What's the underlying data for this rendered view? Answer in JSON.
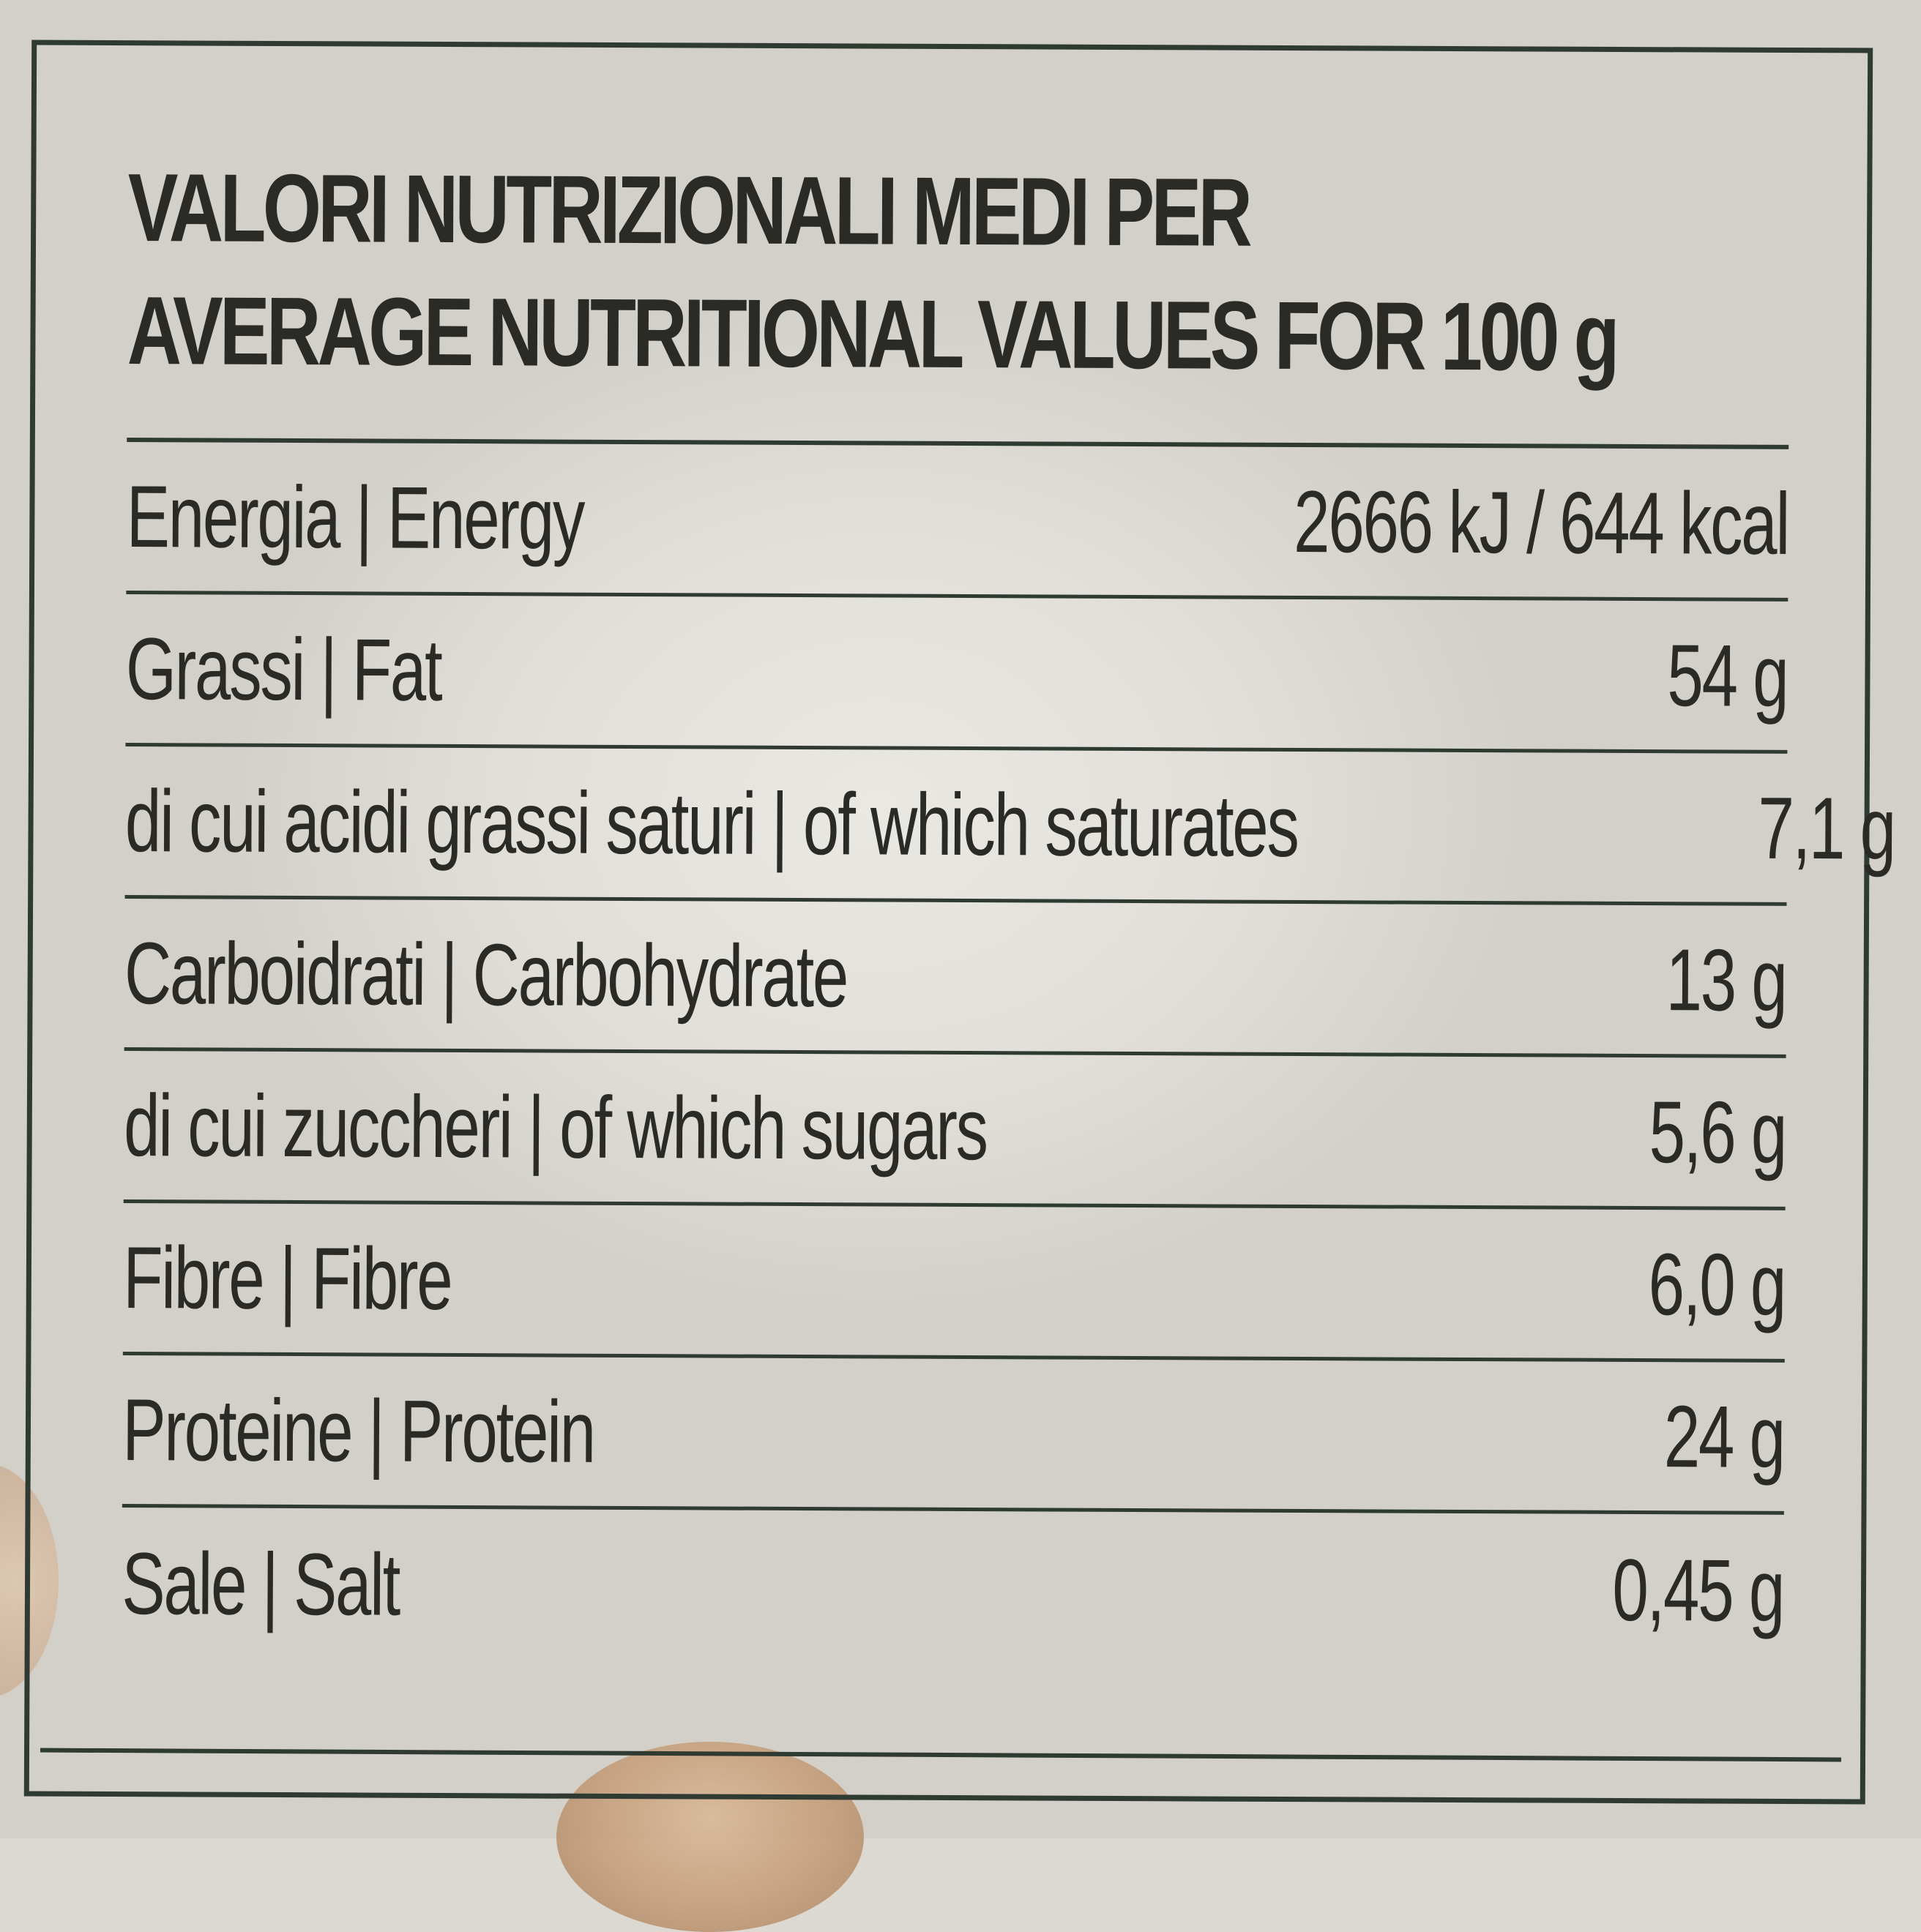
{
  "label": {
    "title_line1": "VALORI NUTRIZIONALI MEDI PER",
    "title_line2": "AVERAGE NUTRITIONAL VALUES FOR  100 g",
    "rows": [
      {
        "label": "Energia | Energy",
        "value": "2666 kJ / 644 kcal"
      },
      {
        "label": "Grassi | Fat",
        "value": "54 g"
      },
      {
        "label": "di cui acidi grassi saturi | of which saturates",
        "value": "7,1 g"
      },
      {
        "label": "Carboidrati | Carbohydrate",
        "value": "13 g"
      },
      {
        "label": "di cui zuccheri | of which sugars",
        "value": "5,6 g"
      },
      {
        "label": "Fibre | Fibre",
        "value": "6,0 g"
      },
      {
        "label": "Proteine | Protein",
        "value": "24 g"
      },
      {
        "label": "Sale | Salt",
        "value": "0,45 g"
      }
    ]
  },
  "colors": {
    "ink": "#2a2a26",
    "frame": "#2f3a33",
    "paper": "#e4e1db"
  }
}
